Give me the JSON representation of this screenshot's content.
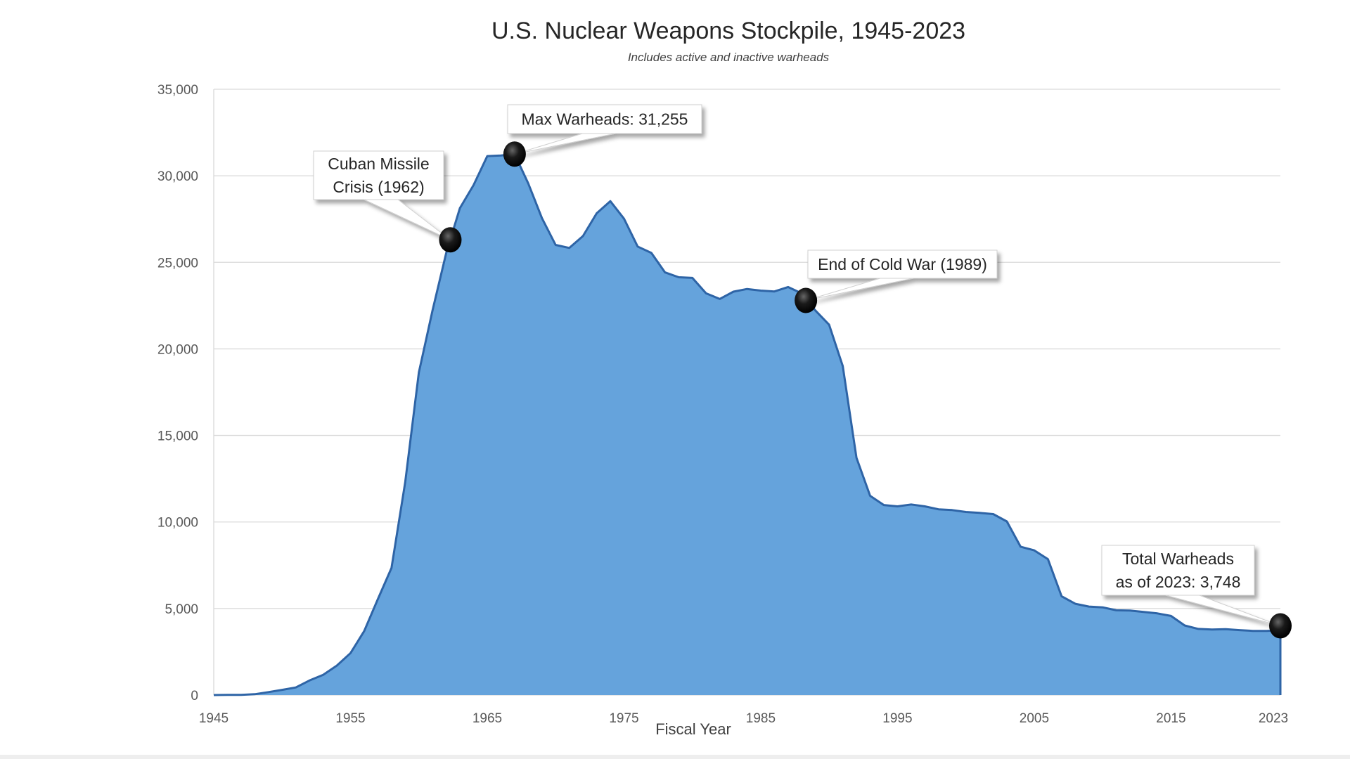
{
  "chart_data": {
    "type": "area",
    "title": "U.S. Nuclear Weapons Stockpile, 1945-2023",
    "subtitle": "Includes active and inactive warheads",
    "xlabel": "Fiscal Year",
    "ylabel": "",
    "xlim": [
      1945,
      2023
    ],
    "ylim": [
      0,
      35000
    ],
    "x_ticks": [
      1945,
      1955,
      1965,
      1975,
      1985,
      1995,
      2005,
      2015,
      2023
    ],
    "x_tick_labels": [
      "1945",
      "1955",
      "1965",
      "1975",
      "1985",
      "1995",
      "2005",
      "2015",
      "2023"
    ],
    "y_ticks": [
      0,
      5000,
      10000,
      15000,
      20000,
      25000,
      30000,
      35000
    ],
    "y_tick_labels": [
      "0",
      "5,000",
      "10,000",
      "15,000",
      "20,000",
      "25,000",
      "30,000",
      "35,000"
    ],
    "grid": "horizontal",
    "legend": "none",
    "colors": {
      "fill": "#65a3dc",
      "line": "#2e64a6",
      "marker": "#111111"
    },
    "x": [
      1945,
      1946,
      1947,
      1948,
      1949,
      1950,
      1951,
      1952,
      1953,
      1954,
      1955,
      1956,
      1957,
      1958,
      1959,
      1960,
      1961,
      1962,
      1963,
      1964,
      1965,
      1966,
      1967,
      1968,
      1969,
      1970,
      1971,
      1972,
      1973,
      1974,
      1975,
      1976,
      1977,
      1978,
      1979,
      1980,
      1981,
      1982,
      1983,
      1984,
      1985,
      1986,
      1987,
      1988,
      1989,
      1990,
      1991,
      1992,
      1993,
      1994,
      1995,
      1996,
      1997,
      1998,
      1999,
      2000,
      2001,
      2002,
      2003,
      2004,
      2005,
      2006,
      2007,
      2008,
      2009,
      2010,
      2011,
      2012,
      2013,
      2014,
      2015,
      2016,
      2017,
      2018,
      2019,
      2020,
      2021,
      2022,
      2023
    ],
    "values": [
      2,
      9,
      13,
      50,
      170,
      299,
      438,
      841,
      1169,
      1703,
      2422,
      3692,
      5543,
      7345,
      12298,
      18638,
      22229,
      25540,
      28133,
      29463,
      31139,
      31175,
      31255,
      29561,
      27552,
      26008,
      25830,
      26516,
      27835,
      28537,
      27519,
      25914,
      25542,
      24418,
      24138,
      24104,
      23208,
      22886,
      23305,
      23459,
      23368,
      23317,
      23575,
      23205,
      22217,
      21392,
      19008,
      13708,
      11511,
      10979,
      10904,
      11011,
      10903,
      10732,
      10685,
      10577,
      10526,
      10457,
      10027,
      8570,
      8360,
      7853,
      5709,
      5273,
      5113,
      5066,
      4897,
      4881,
      4804,
      4717,
      4571,
      4018,
      3822,
      3785,
      3805,
      3750,
      3708,
      3708,
      3748
    ],
    "annotations": [
      {
        "lines": [
          "Cuban Missile",
          "Crisis (1962)"
        ],
        "x": 1962.3,
        "y": 26300
      },
      {
        "lines": [
          "Max Warheads:  31,255"
        ],
        "x": 1967,
        "y": 31255
      },
      {
        "lines": [
          "End of Cold War (1989)"
        ],
        "x": 1988.3,
        "y": 22800
      },
      {
        "lines": [
          "Total Warheads",
          "as of 2023: 3,748"
        ],
        "x": 2023,
        "y": 4000
      }
    ]
  }
}
